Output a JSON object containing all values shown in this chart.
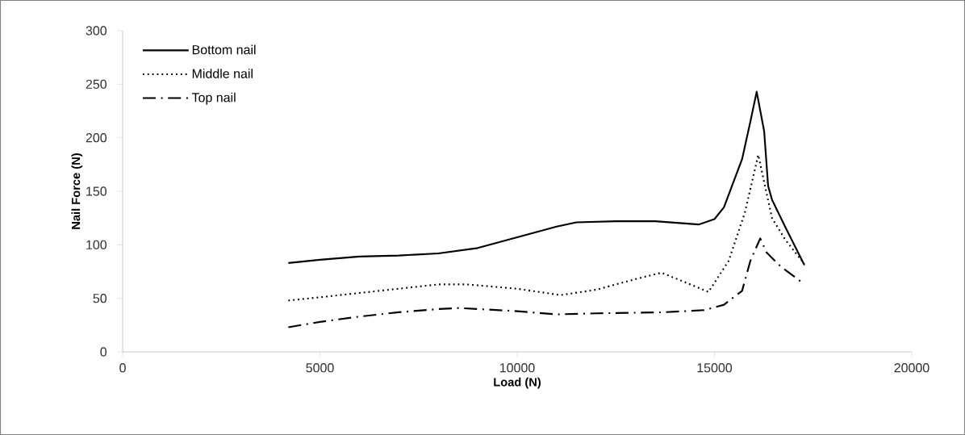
{
  "chart_data": {
    "type": "line",
    "xlabel": "Load (N)",
    "ylabel": "Nail Force (N)",
    "xlim": [
      0,
      20000
    ],
    "xticks": [
      0,
      5000,
      10000,
      15000,
      20000
    ],
    "ylim": [
      0,
      300
    ],
    "yticks": [
      0,
      50,
      100,
      150,
      200,
      250,
      300
    ],
    "grid": false,
    "legend": "top left",
    "marker": "none",
    "series": [
      {
        "name": "Bottom nail",
        "color": "#000000",
        "line_style": "solid",
        "x": [
          4200,
          5000,
          6000,
          7000,
          8000,
          9000,
          10000,
          11000,
          11500,
          12500,
          13500,
          14600,
          15000,
          15240,
          15700,
          15910,
          16070,
          16260,
          16360,
          16460,
          16790,
          17280
        ],
        "values": [
          83,
          86,
          89,
          90,
          92,
          97,
          107,
          117,
          121,
          122,
          122,
          119,
          124,
          135,
          180,
          215,
          243,
          206,
          155,
          142,
          117,
          81
        ]
      },
      {
        "name": "Middle nail",
        "color": "#000000",
        "line_style": "dotted",
        "x": [
          4200,
          5000,
          6000,
          7000,
          8000,
          8730,
          10000,
          11100,
          12000,
          13000,
          13660,
          14850,
          15360,
          15770,
          16110,
          16280,
          16460,
          16790,
          17280
        ],
        "values": [
          48,
          51,
          55,
          59,
          63,
          63,
          59,
          53,
          58,
          68,
          74,
          56,
          85,
          130,
          184,
          155,
          125,
          105,
          82
        ]
      },
      {
        "name": "Top nail",
        "color": "#000000",
        "line_style": "dashdot",
        "x": [
          4200,
          5000,
          6000,
          7000,
          8000,
          8530,
          10000,
          11000,
          12000,
          13720,
          14740,
          15240,
          15700,
          15910,
          16160,
          16320,
          16670,
          17180
        ],
        "values": [
          23,
          28,
          33,
          37,
          40,
          41,
          38,
          35,
          36,
          37,
          39,
          44,
          57,
          85,
          106,
          93,
          80,
          66
        ]
      }
    ]
  }
}
